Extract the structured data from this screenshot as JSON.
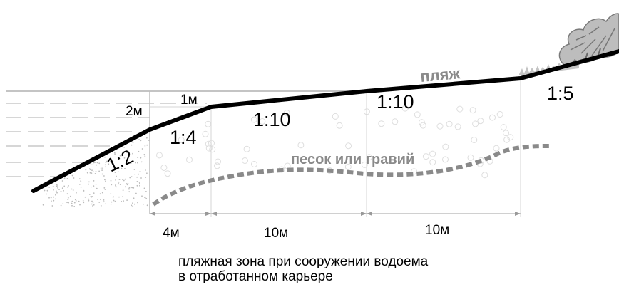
{
  "labels": {
    "beach": "пляж",
    "material": "песок или гравий",
    "depth_2m": "2м",
    "depth_1m": "1м",
    "slope_1_2": "1:2",
    "slope_1_4": "1:4",
    "slope_1_10_a": "1:10",
    "slope_1_10_b": "1:10",
    "slope_1_5": "1:5"
  },
  "dimensions": {
    "d1": "4м",
    "d2": "10м",
    "d3": "10м"
  },
  "caption": {
    "line1": "пляжная зона при сооружении водоема",
    "line2": "в отработанном карьере"
  },
  "colors": {
    "profile": "#000000",
    "water_lines": "#bdbdbd",
    "material_line": "#8a8a8a",
    "sand_dots": "#bbbbbb",
    "grid": "#d6d6d6",
    "tree": "#b5b5b5"
  }
}
